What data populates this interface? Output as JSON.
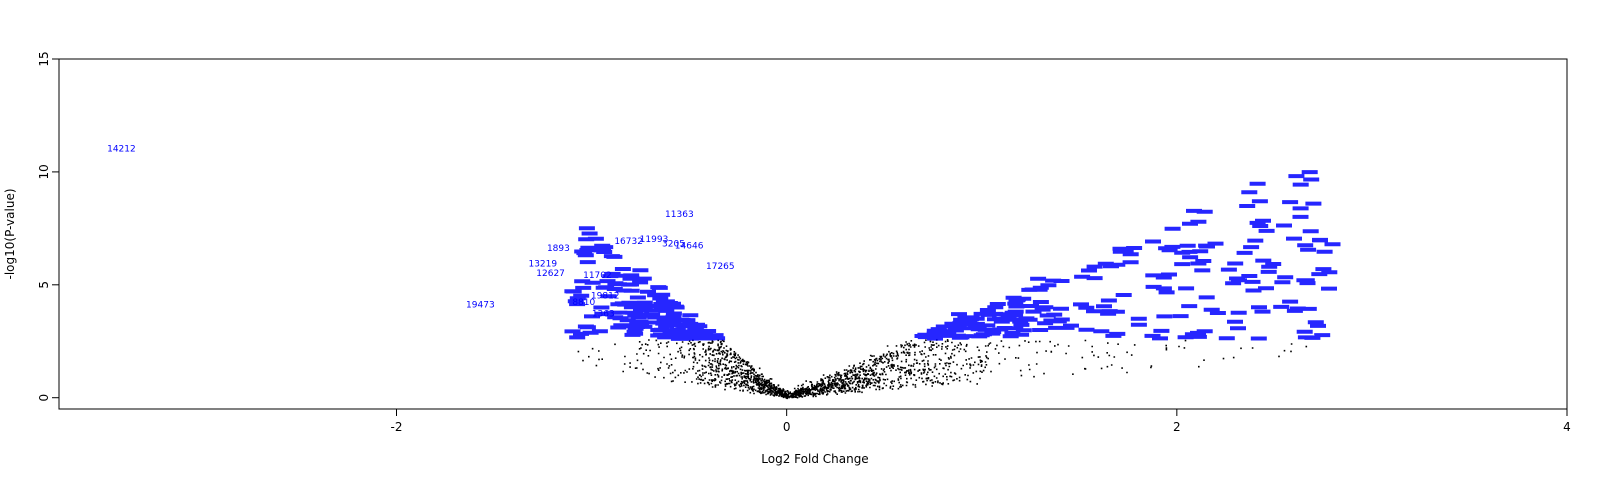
{
  "chart_data": {
    "type": "scatter",
    "title": "",
    "xlabel": "Log2 Fold Change",
    "ylabel": "-log10(P-value)",
    "xlim": [
      -3.73,
      4.0
    ],
    "ylim": [
      -0.5,
      15.0
    ],
    "x_ticks": [
      -2,
      0,
      2,
      4
    ],
    "y_ticks": [
      0,
      5,
      10,
      15
    ],
    "x_tick_labels": [
      "-2",
      "0",
      "2",
      "4"
    ],
    "y_tick_labels": [
      "0",
      "5",
      "10",
      "15"
    ],
    "grid": false,
    "legend": "none",
    "point_color": "#000000",
    "label_color": "#0000ff",
    "label_threshold_neglog10p": 2.6,
    "labeled_genes": [
      {
        "id": "14212",
        "x": -3.41,
        "y": 10.9
      },
      {
        "id": "19473",
        "x": -1.57,
        "y": 4.0
      },
      {
        "id": "1893",
        "x": -1.17,
        "y": 6.5
      },
      {
        "id": "13219",
        "x": -1.25,
        "y": 5.8
      },
      {
        "id": "12627",
        "x": -1.21,
        "y": 5.4
      },
      {
        "id": "11363",
        "x": -0.55,
        "y": 8.0
      },
      {
        "id": "16732",
        "x": -0.81,
        "y": 6.8
      },
      {
        "id": "11993",
        "x": -0.68,
        "y": 6.9
      },
      {
        "id": "3205",
        "x": -0.58,
        "y": 6.7
      },
      {
        "id": "14646",
        "x": -0.5,
        "y": 6.6
      },
      {
        "id": "17265",
        "x": -0.34,
        "y": 5.7
      },
      {
        "id": "11702",
        "x": -0.97,
        "y": 5.3
      },
      {
        "id": "19812",
        "x": -0.93,
        "y": 4.4
      },
      {
        "id": "8810",
        "x": -1.04,
        "y": 4.1
      },
      {
        "id": "1363",
        "x": -0.94,
        "y": 3.6
      }
    ],
    "note_points": "About 30,000 points; only labeled genes are listed."
  }
}
